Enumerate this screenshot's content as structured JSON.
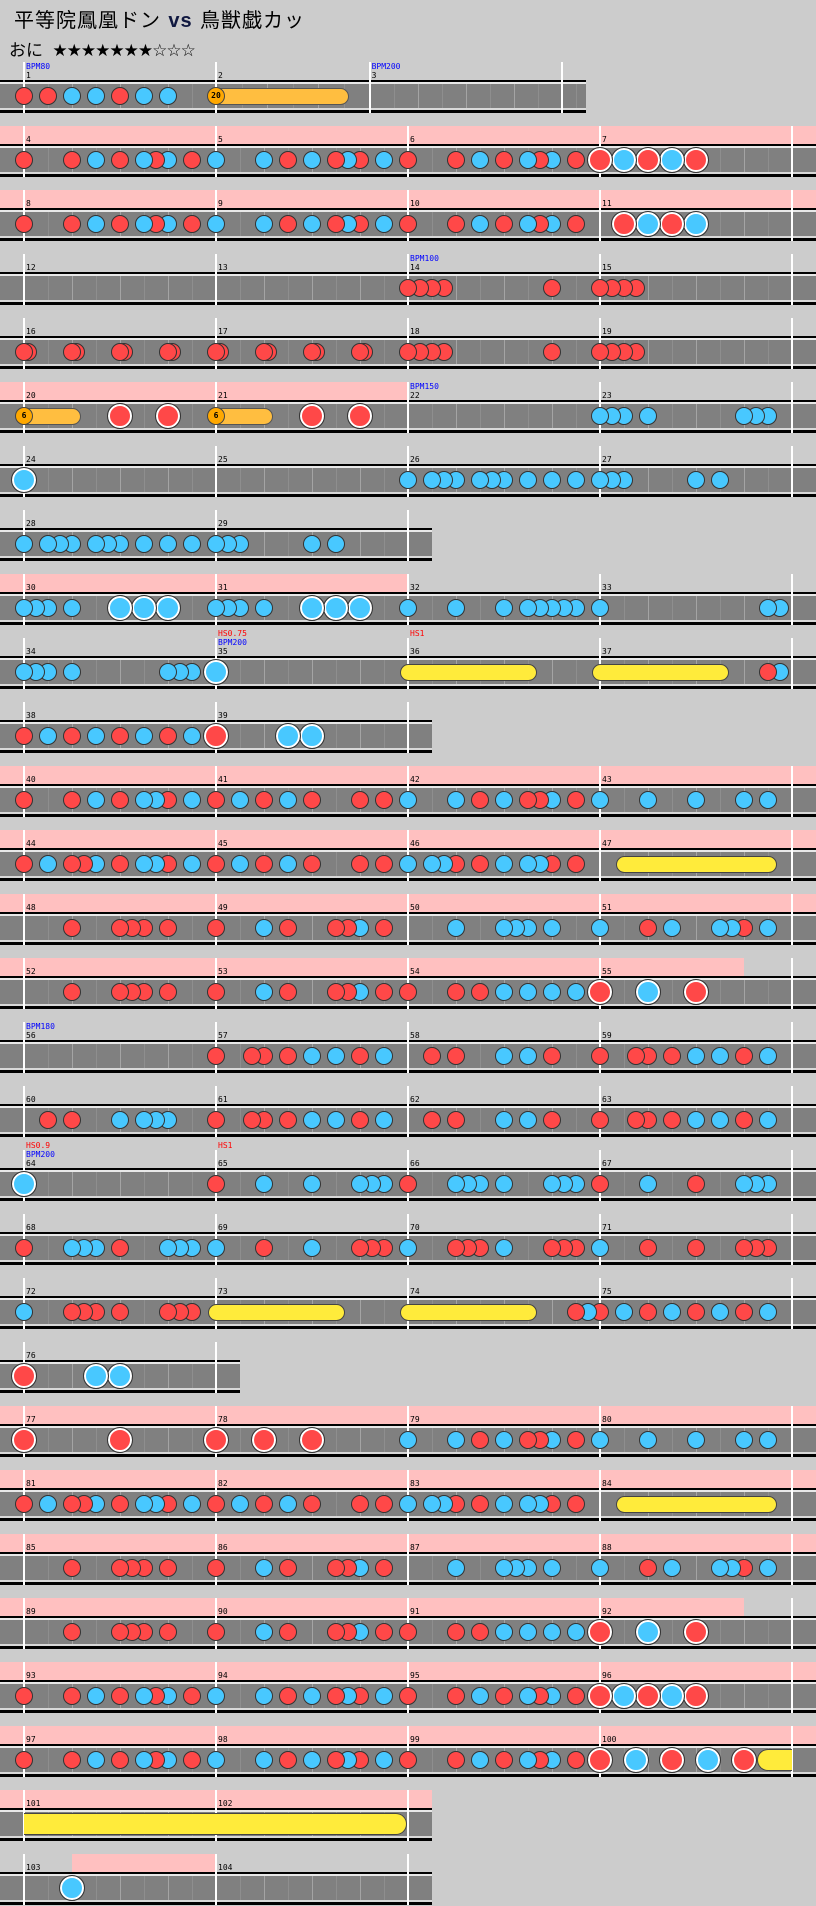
{
  "header": {
    "title_left": "平等院鳳凰ドン",
    "title_vs": "vs",
    "title_right": "鳥獣戯カッ",
    "difficulty": "おに",
    "stars": "★★★★★★★☆☆☆",
    "level": 7,
    "max_level": 10
  },
  "colors": {
    "don": "#ff4848",
    "ka": "#48c8ff",
    "roll": "#ffeb3b",
    "balloon": "#ffa800",
    "gogo": "#ffc0c0",
    "bpm": "#0000ff",
    "hs": "#ff0000"
  },
  "note_legend": {
    "0": "rest",
    "1": "don",
    "2": "ka",
    "3": "big-don",
    "4": "big-ka",
    "5": "drumroll",
    "6": "big-drumroll",
    "7": "balloon",
    "8": "roll-end"
  },
  "rows": [
    [
      {
        "n": "1",
        "bpm": "BPM80",
        "notes": "1010202010202000"
      },
      {
        "n": "2",
        "beats": 3.2,
        "balloon": "20",
        "notes": "7000000000000800"
      },
      {
        "n": "3",
        "bpm": "BPM200",
        "notes": "0000000000000000"
      }
    ],
    [
      {
        "n": "4",
        "gogo": true,
        "notes": "1000102010212010"
      },
      {
        "n": "5",
        "gogo": true,
        "notes": "2000201020121020"
      },
      {
        "n": "6",
        "gogo": true,
        "notes": "1000102010212010"
      },
      {
        "n": "7",
        "gogo": true,
        "notes": "3040304030000000"
      }
    ],
    [
      {
        "n": "8",
        "gogo": true,
        "notes": "1000102010212010"
      },
      {
        "n": "9",
        "gogo": true,
        "notes": "2000201020121020"
      },
      {
        "n": "10",
        "gogo": true,
        "notes": "1000102010212010"
      },
      {
        "n": "11",
        "gogo": true,
        "notes": "0030403040000000"
      }
    ],
    [
      {
        "n": "12",
        "notes": "0000000000000000"
      },
      {
        "n": "13",
        "notes": "0000000000000000"
      },
      {
        "n": "14",
        "bpm": "BPM100",
        "notes": "1111000000001000"
      },
      {
        "n": "15",
        "notes": "1111000000000000"
      }
    ],
    [
      {
        "n": "16",
        "notes": "110000000000110000000000110000000000110000000000"
      },
      {
        "n": "17",
        "notes": "110000000000110000000000110000000000110000000000"
      },
      {
        "n": "18",
        "notes": "1111000000001000"
      },
      {
        "n": "19",
        "notes": "1111000000000000"
      }
    ],
    [
      {
        "n": "20",
        "gogo": true,
        "balloon": "6",
        "notes": "7000800030003000"
      },
      {
        "n": "21",
        "gogo": true,
        "balloon": "6",
        "notes": "7000800030003000"
      },
      {
        "n": "22",
        "bpm": "BPM150",
        "notes": "0000000000000000"
      },
      {
        "n": "23",
        "notes": "2220200000002220"
      }
    ],
    [
      {
        "n": "24",
        "notes": "4000000000000000"
      },
      {
        "n": "25",
        "notes": "0000000000000000"
      },
      {
        "n": "26",
        "notes": "2022202220202020"
      },
      {
        "n": "27",
        "notes": "2220000020200000"
      }
    ],
    [
      {
        "n": "28",
        "notes": "2022202220202020"
      },
      {
        "n": "29",
        "notes": "2220000020200000"
      }
    ],
    [
      {
        "n": "30",
        "gogo": true,
        "notes": "2220200040404000"
      },
      {
        "n": "31",
        "gogo": true,
        "notes": "2220200040404000"
      },
      {
        "n": "32",
        "notes": "2000200020222220"
      },
      {
        "n": "33",
        "notes": "2000000000000022"
      }
    ],
    [
      {
        "n": "34",
        "notes": "2220200000002220"
      },
      {
        "n": "35",
        "hs": "HS0.75",
        "bpm": "BPM200",
        "notes": "4000000000000000"
      },
      {
        "n": "36",
        "hs": "HS1",
        "notes": "5000000000800000"
      },
      {
        "n": "37",
        "notes": "5000000000800012"
      }
    ],
    [
      {
        "n": "38",
        "notes": "1020102010201020"
      },
      {
        "n": "39",
        "notes": "3000004040000000"
      }
    ],
    [
      {
        "n": "40",
        "gogo": true,
        "notes": "1000102010221020"
      },
      {
        "n": "41",
        "gogo": true,
        "notes": "1020102010001010"
      },
      {
        "n": "42",
        "gogo": true,
        "notes": "2000201020112010"
      },
      {
        "n": "43",
        "gogo": true,
        "notes": "2000200020002020"
      }
    ],
    [
      {
        "n": "44",
        "gogo": true,
        "notes": "1020112010221020"
      },
      {
        "n": "45",
        "gogo": true,
        "notes": "1020102010001010"
      },
      {
        "n": "46",
        "gogo": true,
        "notes": "2022101020221010"
      },
      {
        "n": "47",
        "gogo": true,
        "notes": "0050000000000080"
      }
    ],
    [
      {
        "n": "48",
        "gogo": true,
        "notes": "0000100011101000"
      },
      {
        "n": "49",
        "gogo": true,
        "notes": "1000201000112010"
      },
      {
        "n": "50",
        "gogo": true,
        "notes": "0000200022202000"
      },
      {
        "n": "51",
        "gogo": true,
        "notes": "2000102000221020"
      }
    ],
    [
      {
        "n": "52",
        "gogo": true,
        "notes": "0000100011101000"
      },
      {
        "n": "53",
        "gogo": true,
        "notes": "1000201000112010"
      },
      {
        "n": "54",
        "gogo": true,
        "notes": "1000101020202020"
      },
      {
        "n": "55",
        "gogo": [
          0,
          0.75
        ],
        "notes": "3000400030000000"
      }
    ],
    [
      {
        "n": "56",
        "bpm": "BPM180",
        "notes": "0000000000000000"
      },
      {
        "n": "57",
        "notes": "1001101020201020"
      },
      {
        "n": "58",
        "notes": "0010100020201000"
      },
      {
        "n": "59",
        "notes": "1001101020201020"
      }
    ],
    [
      {
        "n": "60",
        "notes": "0010100020222000"
      },
      {
        "n": "61",
        "notes": "1001101020201020"
      },
      {
        "n": "62",
        "notes": "0010100020201000"
      },
      {
        "n": "63",
        "notes": "1001101020201020"
      }
    ],
    [
      {
        "n": "64",
        "hs": "HS0.9",
        "bpm": "BPM200",
        "notes": "4000000000000000"
      },
      {
        "n": "65",
        "hs": "HS1",
        "notes": "1000200020002220"
      },
      {
        "n": "66",
        "notes": "1000222020002220"
      },
      {
        "n": "67",
        "notes": "1000200010002220"
      }
    ],
    [
      {
        "n": "68",
        "notes": "1000222010002220"
      },
      {
        "n": "69",
        "notes": "2000100020001110"
      },
      {
        "n": "70",
        "notes": "2000111020001110"
      },
      {
        "n": "71",
        "notes": "2000100010001110"
      }
    ],
    [
      {
        "n": "72",
        "notes": "2000111010001110"
      },
      {
        "n": "73",
        "notes": "5000000000800000"
      },
      {
        "n": "74",
        "notes": "5000000000800012"
      },
      {
        "n": "75",
        "notes": "1020102010201020"
      }
    ],
    [
      {
        "n": "76",
        "notes": "3000004040000000"
      }
    ],
    [
      {
        "n": "77",
        "gogo": true,
        "notes": "3000000030000000"
      },
      {
        "n": "78",
        "gogo": true,
        "notes": "3000300030000000"
      },
      {
        "n": "79",
        "gogo": true,
        "notes": "2000201020112010"
      },
      {
        "n": "80",
        "gogo": true,
        "notes": "2000200020002020"
      }
    ],
    [
      {
        "n": "81",
        "gogo": true,
        "notes": "1020112010221020"
      },
      {
        "n": "82",
        "gogo": true,
        "notes": "1020102010001010"
      },
      {
        "n": "83",
        "gogo": true,
        "notes": "2022101020221010"
      },
      {
        "n": "84",
        "gogo": true,
        "notes": "0050000000000080"
      }
    ],
    [
      {
        "n": "85",
        "gogo": true,
        "notes": "0000100011101000"
      },
      {
        "n": "86",
        "gogo": true,
        "notes": "1000201000112010"
      },
      {
        "n": "87",
        "gogo": true,
        "notes": "0000200022202000"
      },
      {
        "n": "88",
        "gogo": true,
        "notes": "2000102000221020"
      }
    ],
    [
      {
        "n": "89",
        "gogo": true,
        "notes": "0000100011101000"
      },
      {
        "n": "90",
        "gogo": true,
        "notes": "1000201000112010"
      },
      {
        "n": "91",
        "gogo": true,
        "notes": "1000101020202020"
      },
      {
        "n": "92",
        "gogo": [
          0,
          0.75
        ],
        "notes": "3000400030000000"
      }
    ],
    [
      {
        "n": "93",
        "gogo": true,
        "notes": "1000102010212010"
      },
      {
        "n": "94",
        "gogo": true,
        "notes": "2000201020121020"
      },
      {
        "n": "95",
        "gogo": true,
        "notes": "1000102010212010"
      },
      {
        "n": "96",
        "gogo": true,
        "notes": "3040304030000000"
      }
    ],
    [
      {
        "n": "97",
        "gogo": true,
        "notes": "1000102010212010"
      },
      {
        "n": "98",
        "gogo": true,
        "notes": "2000201020121020"
      },
      {
        "n": "99",
        "gogo": true,
        "notes": "1000102010212010"
      },
      {
        "n": "100",
        "gogo": true,
        "notes": "3004003004003060"
      }
    ],
    [
      {
        "n": "101",
        "gogo": true,
        "notes": "0000000000000000"
      },
      {
        "n": "102",
        "gogo": true,
        "notes": "0000000000000008"
      }
    ],
    [
      {
        "n": "103",
        "gogo": [
          0.25,
          1
        ],
        "notes": "0000400000000000"
      },
      {
        "n": "104",
        "notes": "0000000000000000"
      }
    ]
  ]
}
